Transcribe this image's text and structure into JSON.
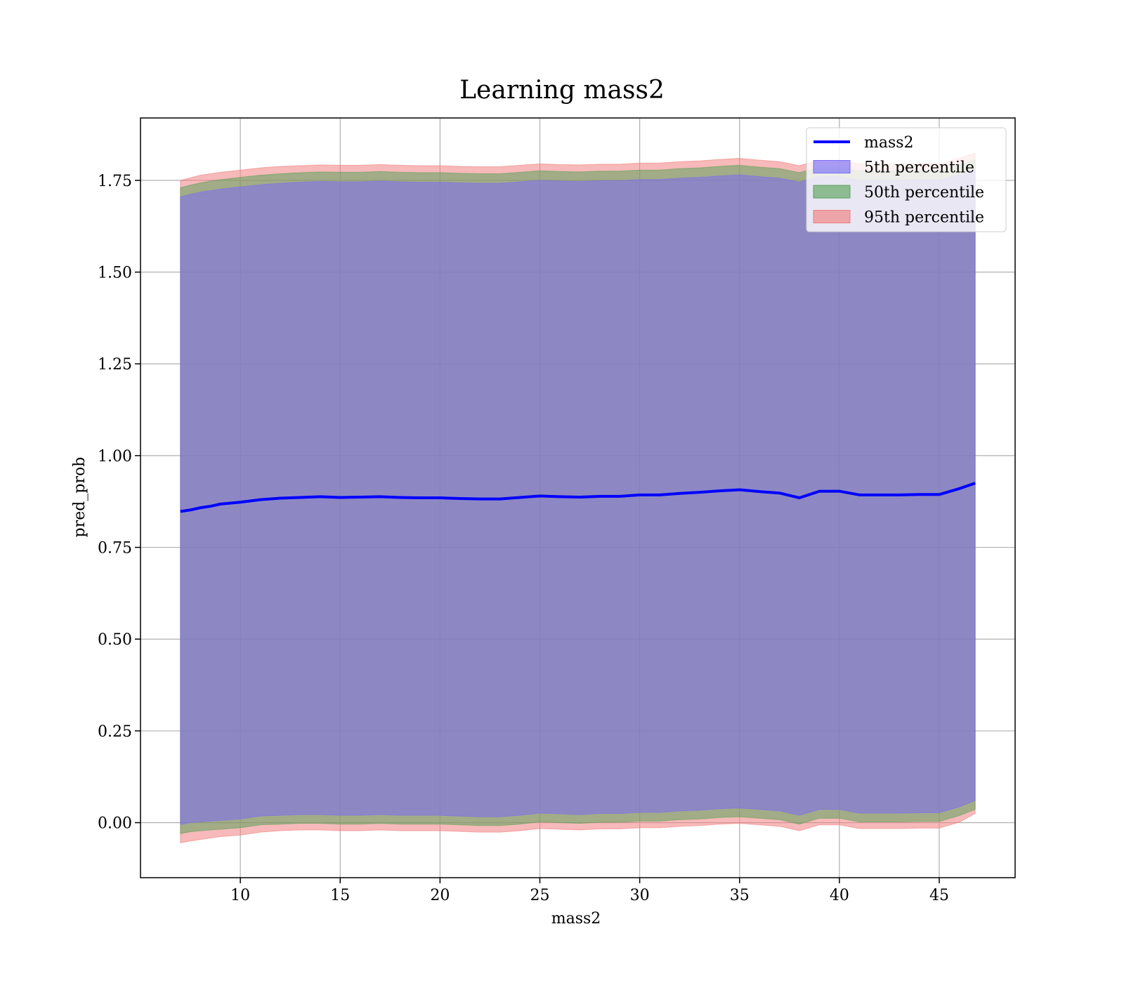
{
  "chart_data": {
    "type": "line",
    "title": "Learning mass2",
    "xlabel": "mass2",
    "ylabel": "pred_prob",
    "xlim": [
      5.0,
      48.8
    ],
    "ylim": [
      -0.15,
      1.92
    ],
    "grid": true,
    "legend_position": "top-right",
    "x_ticks": [
      10,
      15,
      20,
      25,
      30,
      35,
      40,
      45
    ],
    "y_ticks": [
      0.0,
      0.25,
      0.5,
      0.75,
      1.0,
      1.25,
      1.5,
      1.75
    ],
    "x_tick_labels": [
      "10",
      "15",
      "20",
      "25",
      "30",
      "35",
      "40",
      "45"
    ],
    "y_tick_labels": [
      "0.00",
      "0.25",
      "0.50",
      "0.75",
      "1.00",
      "1.25",
      "1.50",
      "1.75"
    ],
    "colors": {
      "line": "#0000ff",
      "band_5th": "#7b6cf6",
      "band_50th": "#5da35d",
      "band_95th": "#f07f7f",
      "axes": "#000000",
      "grid": "#b0b0b0"
    },
    "x": [
      7.0,
      7.5,
      8.0,
      8.5,
      9.0,
      10.0,
      11.0,
      12.0,
      13.0,
      14.0,
      15.0,
      16.0,
      17.0,
      18.0,
      19.0,
      20.0,
      21.0,
      22.0,
      23.0,
      24.0,
      25.0,
      26.0,
      27.0,
      28.0,
      29.0,
      30.0,
      31.0,
      32.0,
      33.0,
      34.0,
      35.0,
      36.0,
      37.0,
      38.0,
      39.0,
      40.0,
      41.0,
      42.0,
      43.0,
      44.0,
      45.0,
      46.0,
      46.8
    ],
    "series": [
      {
        "name": "mass2",
        "kind": "line",
        "values": [
          0.848,
          0.852,
          0.858,
          0.862,
          0.868,
          0.873,
          0.88,
          0.884,
          0.886,
          0.888,
          0.886,
          0.887,
          0.888,
          0.886,
          0.885,
          0.885,
          0.883,
          0.882,
          0.882,
          0.886,
          0.89,
          0.888,
          0.887,
          0.889,
          0.889,
          0.893,
          0.893,
          0.897,
          0.9,
          0.904,
          0.907,
          0.902,
          0.898,
          0.885,
          0.903,
          0.903,
          0.893,
          0.893,
          0.893,
          0.894,
          0.894,
          0.91,
          0.925
        ]
      },
      {
        "name": "5th percentile",
        "kind": "band",
        "lower": [
          -0.005,
          0.0,
          0.002,
          0.004,
          0.006,
          0.01,
          0.018,
          0.02,
          0.022,
          0.022,
          0.02,
          0.02,
          0.022,
          0.02,
          0.02,
          0.02,
          0.018,
          0.016,
          0.016,
          0.02,
          0.026,
          0.024,
          0.022,
          0.025,
          0.025,
          0.028,
          0.028,
          0.032,
          0.034,
          0.038,
          0.04,
          0.036,
          0.032,
          0.02,
          0.036,
          0.036,
          0.026,
          0.026,
          0.026,
          0.027,
          0.027,
          0.043,
          0.06
        ],
        "upper": [
          1.705,
          1.712,
          1.718,
          1.722,
          1.726,
          1.732,
          1.738,
          1.742,
          1.745,
          1.747,
          1.746,
          1.746,
          1.748,
          1.746,
          1.745,
          1.745,
          1.743,
          1.742,
          1.742,
          1.746,
          1.75,
          1.748,
          1.747,
          1.749,
          1.749,
          1.752,
          1.752,
          1.756,
          1.758,
          1.762,
          1.765,
          1.76,
          1.756,
          1.745,
          1.76,
          1.76,
          1.75,
          1.75,
          1.75,
          1.751,
          1.751,
          1.765,
          1.78
        ]
      },
      {
        "name": "50th percentile",
        "kind": "band",
        "lower": [
          -0.03,
          -0.025,
          -0.022,
          -0.02,
          -0.018,
          -0.014,
          -0.006,
          -0.004,
          -0.002,
          -0.002,
          -0.004,
          -0.004,
          -0.002,
          -0.004,
          -0.004,
          -0.004,
          -0.006,
          -0.008,
          -0.008,
          -0.004,
          0.002,
          0.0,
          -0.002,
          0.001,
          0.001,
          0.004,
          0.004,
          0.008,
          0.01,
          0.014,
          0.016,
          0.012,
          0.008,
          -0.004,
          0.012,
          0.012,
          0.002,
          0.002,
          0.002,
          0.003,
          0.003,
          0.019,
          0.036
        ],
        "upper": [
          1.73,
          1.737,
          1.743,
          1.748,
          1.752,
          1.758,
          1.764,
          1.768,
          1.771,
          1.773,
          1.772,
          1.772,
          1.774,
          1.772,
          1.771,
          1.771,
          1.769,
          1.768,
          1.768,
          1.772,
          1.776,
          1.774,
          1.773,
          1.775,
          1.775,
          1.778,
          1.778,
          1.782,
          1.784,
          1.788,
          1.791,
          1.786,
          1.782,
          1.771,
          1.786,
          1.786,
          1.776,
          1.776,
          1.776,
          1.777,
          1.777,
          1.791,
          1.806
        ]
      },
      {
        "name": "95th percentile",
        "kind": "band",
        "lower": [
          -0.055,
          -0.05,
          -0.046,
          -0.042,
          -0.038,
          -0.034,
          -0.026,
          -0.022,
          -0.02,
          -0.02,
          -0.022,
          -0.022,
          -0.02,
          -0.022,
          -0.022,
          -0.022,
          -0.024,
          -0.026,
          -0.026,
          -0.022,
          -0.016,
          -0.018,
          -0.02,
          -0.017,
          -0.017,
          -0.014,
          -0.014,
          -0.01,
          -0.008,
          -0.004,
          -0.002,
          -0.006,
          -0.01,
          -0.022,
          -0.006,
          -0.006,
          -0.016,
          -0.016,
          -0.016,
          -0.015,
          -0.015,
          0.001,
          0.025
        ],
        "upper": [
          1.75,
          1.757,
          1.764,
          1.768,
          1.772,
          1.778,
          1.784,
          1.788,
          1.79,
          1.792,
          1.791,
          1.791,
          1.793,
          1.791,
          1.79,
          1.79,
          1.788,
          1.787,
          1.787,
          1.791,
          1.795,
          1.793,
          1.792,
          1.794,
          1.794,
          1.797,
          1.797,
          1.801,
          1.803,
          1.807,
          1.81,
          1.805,
          1.801,
          1.79,
          1.805,
          1.805,
          1.795,
          1.795,
          1.795,
          1.796,
          1.796,
          1.81,
          1.825
        ]
      }
    ]
  }
}
